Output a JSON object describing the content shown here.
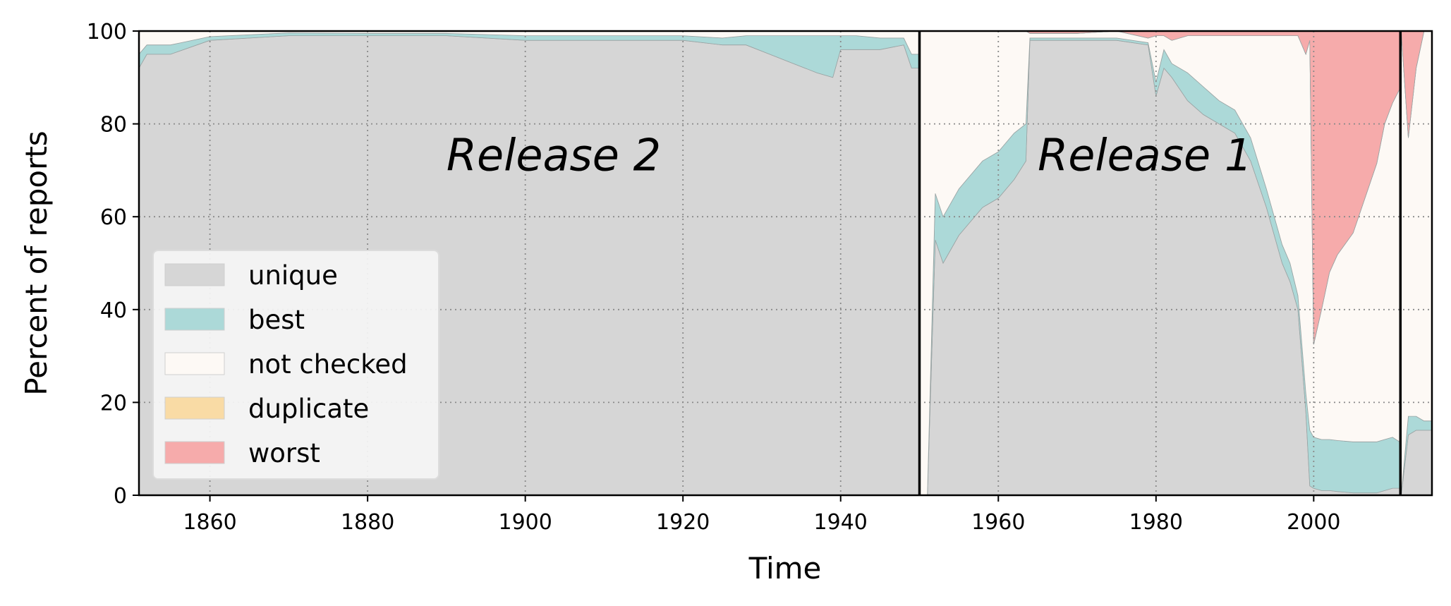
{
  "chart_data": {
    "type": "area",
    "stacked": true,
    "xlabel": "Time",
    "ylabel": "Percent of reports",
    "xlim": [
      1851,
      2015
    ],
    "ylim": [
      0,
      100
    ],
    "xticks": [
      1860,
      1880,
      1900,
      1920,
      1940,
      1960,
      1980,
      2000
    ],
    "yticks": [
      0,
      20,
      40,
      60,
      80,
      100
    ],
    "grid": true,
    "legend_position": "lower-left",
    "vlines": [
      1950,
      2011
    ],
    "annotations": [
      {
        "text": "Release 2",
        "x": 1890,
        "y": 70
      },
      {
        "text": "Release 1",
        "x": 1965,
        "y": 70
      }
    ],
    "x": [
      1851,
      1852,
      1855,
      1860,
      1870,
      1880,
      1890,
      1900,
      1910,
      1920,
      1925,
      1928,
      1931,
      1934,
      1937,
      1939,
      1940,
      1942,
      1945,
      1948,
      1949,
      1949.9,
      1950.1,
      1951,
      1952,
      1953,
      1955,
      1958,
      1960,
      1962,
      1963.5,
      1964,
      1966,
      1970,
      1975,
      1979,
      1980,
      1981,
      1982,
      1984,
      1986,
      1988,
      1990,
      1992,
      1994,
      1996,
      1997,
      1998,
      1999,
      1999.5,
      2000,
      2001,
      2002,
      2003,
      2005,
      2008,
      2009,
      2010,
      2010.9,
      2011.1,
      2012,
      2013,
      2014,
      2015
    ],
    "series": [
      {
        "name": "unique",
        "color": "#d6d6d6",
        "values": [
          92,
          95,
          95,
          98,
          99,
          99,
          99,
          98,
          98,
          98,
          97,
          97,
          95,
          93,
          91,
          90,
          96,
          96,
          96,
          97,
          92,
          92,
          0,
          0,
          55,
          50,
          56,
          62,
          64,
          68,
          72,
          98,
          98,
          98,
          98,
          97,
          86,
          92,
          90,
          85,
          82,
          80,
          78,
          72,
          62,
          50,
          46,
          40,
          18,
          2,
          1.5,
          1,
          1,
          0.8,
          0.5,
          0.5,
          1,
          1.5,
          1.5,
          0,
          13,
          14,
          14,
          14
        ]
      },
      {
        "name": "best",
        "color": "#acd9d8",
        "values": [
          3,
          2,
          2,
          0.8,
          0.6,
          0.5,
          0.5,
          1,
          1,
          1,
          1.5,
          2,
          4,
          6,
          8,
          9,
          3,
          3,
          2.5,
          1.5,
          3,
          3,
          0,
          0,
          10,
          10,
          10,
          10,
          10,
          10,
          8,
          0.5,
          0.5,
          0.5,
          0.5,
          0.5,
          3,
          4,
          3,
          6,
          6,
          5,
          5,
          5,
          4,
          4,
          4,
          3,
          4,
          12,
          11,
          11,
          11,
          11,
          11,
          11,
          11,
          11,
          10,
          0,
          4,
          3,
          2,
          2
        ]
      },
      {
        "name": "not checked",
        "color": "#fdf9f5",
        "values": [
          5,
          3,
          3,
          1.2,
          0.4,
          0.5,
          0.5,
          1,
          1,
          1,
          1.5,
          1,
          1,
          1,
          1,
          1,
          1,
          1,
          1.5,
          1.5,
          5,
          5,
          100,
          100,
          35,
          40,
          34,
          28,
          26,
          22,
          20,
          1,
          1,
          1,
          1.5,
          1,
          10,
          3,
          5,
          8,
          11,
          14,
          16,
          22,
          33,
          45,
          49,
          56,
          73,
          84,
          20,
          28,
          36,
          40,
          45,
          60,
          68,
          72,
          76,
          100,
          60,
          75,
          84,
          84
        ]
      },
      {
        "name": "duplicate",
        "color": "#f9dba5",
        "values": [
          0,
          0,
          0,
          0,
          0,
          0,
          0,
          0,
          0,
          0,
          0,
          0,
          0,
          0,
          0,
          0,
          0,
          0,
          0,
          0,
          0,
          0,
          0,
          0,
          0,
          0,
          0,
          0,
          0,
          0,
          0,
          0,
          0,
          0,
          0,
          0,
          0,
          0,
          0,
          0,
          0,
          0,
          0,
          0,
          0,
          0,
          0,
          0,
          0,
          0,
          0,
          0,
          0,
          0,
          0,
          0,
          0,
          0,
          0,
          0,
          0,
          0,
          0,
          0
        ]
      },
      {
        "name": "worst",
        "color": "#f6abab",
        "values": [
          0,
          0,
          0,
          0,
          0,
          0,
          0,
          0,
          0,
          0,
          0,
          0,
          0,
          0,
          0,
          0,
          0,
          0,
          0,
          0,
          0,
          0,
          0,
          0,
          0,
          0,
          0,
          0,
          0,
          0,
          0,
          0.5,
          0.5,
          0.5,
          0,
          1.5,
          1,
          1,
          2,
          1,
          1,
          1,
          1,
          1,
          1,
          1,
          1,
          1,
          5,
          2,
          67.5,
          60,
          52,
          48.2,
          43.5,
          28.5,
          20,
          15.5,
          12.5,
          0,
          23,
          8,
          0,
          0
        ]
      }
    ]
  }
}
